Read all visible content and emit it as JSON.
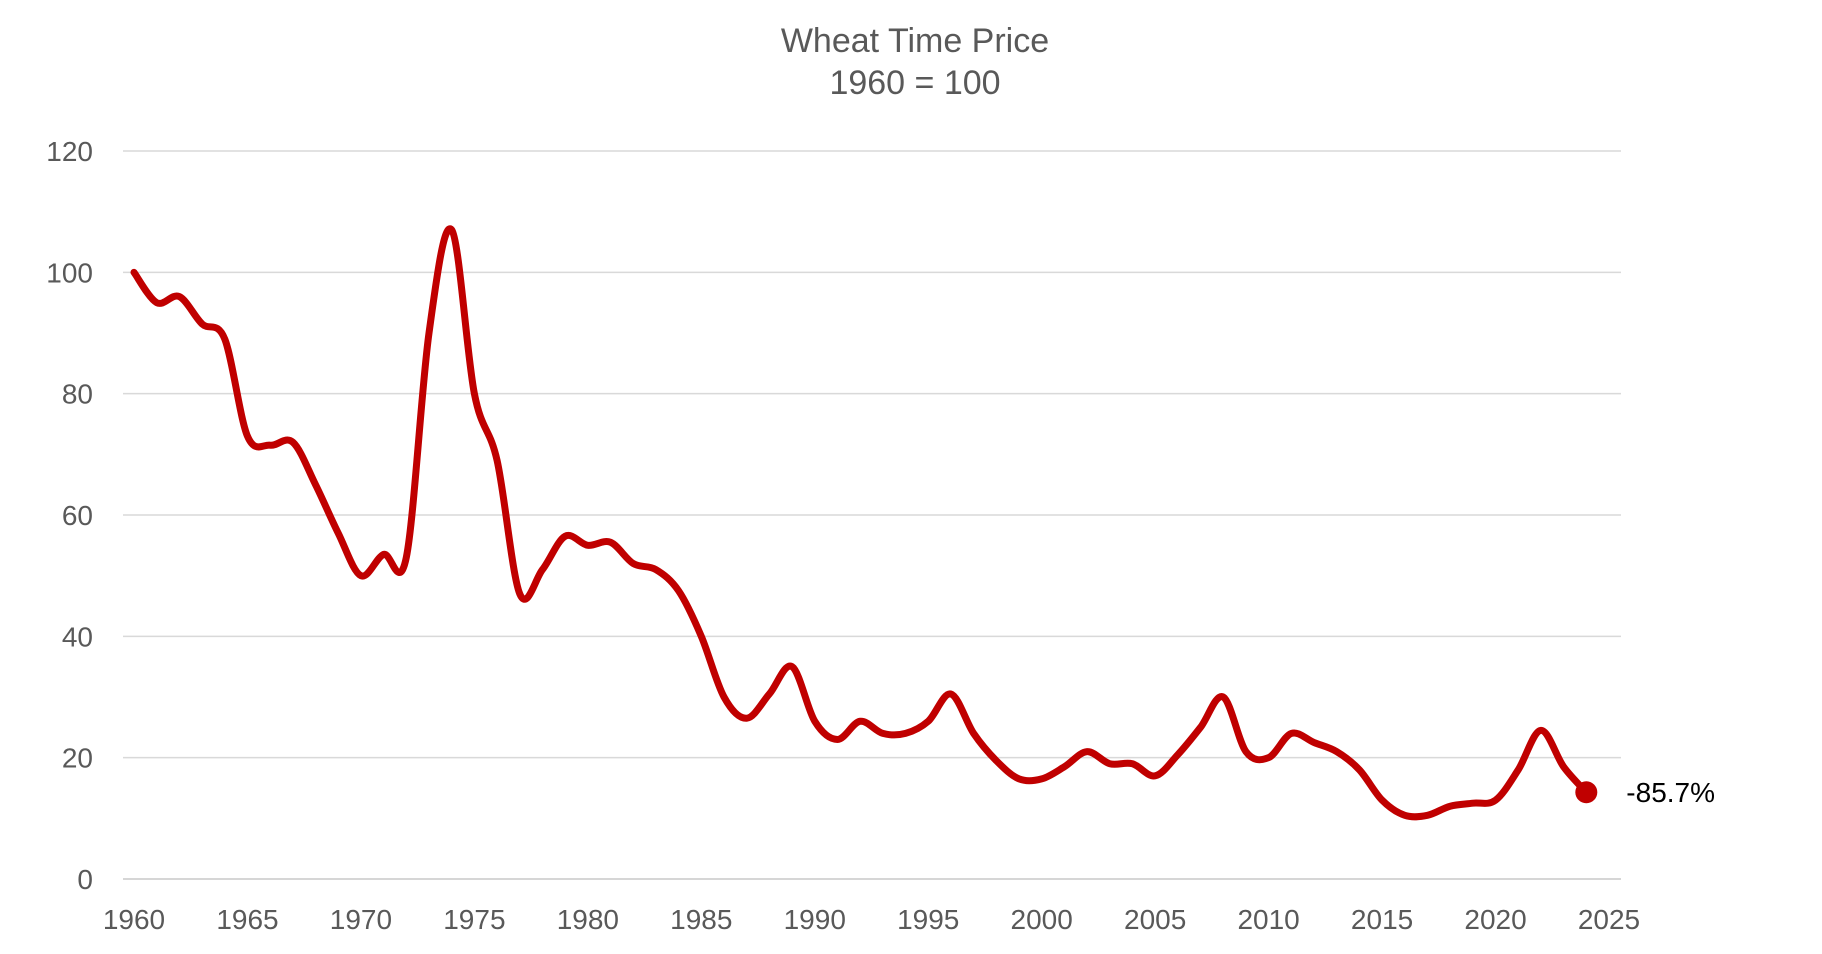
{
  "chart_data": {
    "type": "line",
    "title": "Wheat Time Price",
    "subtitle": "1960 = 100",
    "xlabel": "",
    "ylabel": "",
    "xlim": [
      1960,
      2025
    ],
    "ylim": [
      0,
      120
    ],
    "grid": true,
    "x_ticks": [
      "1960",
      "1965",
      "1970",
      "1975",
      "1980",
      "1985",
      "1990",
      "1995",
      "2000",
      "2005",
      "2010",
      "2015",
      "2020",
      "2025"
    ],
    "y_ticks": [
      "0",
      "20",
      "40",
      "60",
      "80",
      "100",
      "120"
    ],
    "series": [
      {
        "name": "Wheat Time Price",
        "color": "#C00000",
        "x": [
          1960,
          1961,
          1962,
          1963,
          1964,
          1965,
          1966,
          1967,
          1968,
          1969,
          1970,
          1971,
          1972,
          1973,
          1974,
          1975,
          1976,
          1977,
          1978,
          1979,
          1980,
          1981,
          1982,
          1983,
          1984,
          1985,
          1986,
          1987,
          1988,
          1989,
          1990,
          1991,
          1992,
          1993,
          1994,
          1995,
          1996,
          1997,
          1998,
          1999,
          2000,
          2001,
          2002,
          2003,
          2004,
          2005,
          2006,
          2007,
          2008,
          2009,
          2010,
          2011,
          2012,
          2013,
          2014,
          2015,
          2016,
          2017,
          2018,
          2019,
          2020,
          2021,
          2022,
          2023,
          2024
        ],
        "values": [
          100,
          95,
          96,
          91.5,
          89,
          73,
          71.5,
          72,
          65,
          57,
          50,
          53.5,
          53,
          90,
          107,
          80,
          69,
          47,
          51,
          56.5,
          55,
          55.5,
          52,
          51,
          47.5,
          40,
          30,
          26.5,
          30.5,
          35,
          26,
          23,
          26,
          24,
          24,
          26,
          30.5,
          24,
          19.5,
          16.5,
          16.5,
          18.5,
          21,
          19,
          19,
          17,
          20.5,
          25,
          30,
          21,
          20,
          24,
          22.5,
          21,
          18,
          13,
          10.5,
          10.5,
          12,
          12.5,
          13,
          18,
          24.5,
          18.5,
          14.3
        ]
      }
    ],
    "annotations": [
      {
        "text": "-85.7%",
        "x": 2024,
        "y": 14.3
      }
    ]
  }
}
